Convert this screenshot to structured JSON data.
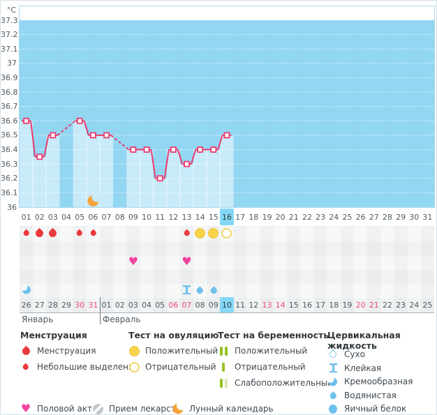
{
  "chart_data": {
    "type": "line",
    "title": "",
    "ylabel": "°C",
    "ylim": [
      36,
      37.3
    ],
    "y_ticks": [
      "37.3",
      "37.2",
      "37.1",
      "37",
      "36.9",
      "36.8",
      "36.7",
      "36.6",
      "36.5",
      "36.4",
      "36.3",
      "36.2",
      "36.1",
      "36"
    ],
    "grid": "white-dotted-horizontal",
    "legend_position": "bottom",
    "cycle_days": [
      "01",
      "02",
      "03",
      "04",
      "05",
      "06",
      "07",
      "08",
      "09",
      "10",
      "11",
      "12",
      "13",
      "14",
      "15",
      "16",
      "17",
      "18",
      "19",
      "20",
      "21",
      "22",
      "23",
      "24",
      "25",
      "26",
      "27",
      "28",
      "29",
      "30",
      "31"
    ],
    "temperatures": [
      36.6,
      36.35,
      36.5,
      null,
      36.6,
      36.5,
      36.5,
      null,
      36.4,
      36.4,
      36.2,
      36.4,
      36.3,
      36.4,
      36.4,
      36.5,
      null,
      null,
      null,
      null,
      null,
      null,
      null,
      null,
      null,
      null,
      null,
      null,
      null,
      null,
      null
    ],
    "current_cycle_day": 16,
    "moon_day": 6,
    "missing_data_style": "dashed-connector"
  },
  "symbol_rows": {
    "menstruation_ovulation": {
      "1": "drop-small",
      "2": "drop-large",
      "3": "drop-large",
      "5": "drop-small",
      "6": "drop-small",
      "13": "drop-small",
      "14": "ovulation-positive",
      "15": "ovulation-positive",
      "16": "ovulation-negative"
    },
    "pregnancy": {},
    "intercourse": {
      "9": "heart",
      "13": "heart"
    },
    "medication": {},
    "cervical_fluid": {
      "1": "fluid-creamy",
      "13": "fluid-sticky",
      "14": "fluid-watery",
      "15": "fluid-watery"
    }
  },
  "calendar": {
    "date_labels": [
      "26",
      "27",
      "28",
      "29",
      "30",
      "31",
      "01",
      "02",
      "03",
      "04",
      "05",
      "06",
      "07",
      "08",
      "09",
      "10",
      "11",
      "12",
      "13",
      "14",
      "15",
      "16",
      "17",
      "18",
      "19",
      "20",
      "21",
      "22",
      "23",
      "24",
      "25"
    ],
    "weekend_indices": [
      4,
      5,
      11,
      12,
      18,
      19,
      25,
      26
    ],
    "current_index": 15,
    "months": [
      {
        "label": "Январь"
      },
      {
        "label": "Февраль"
      }
    ],
    "month2_start_index": 6
  },
  "icon_glyphs": {
    "heart": "♥"
  },
  "colors": {
    "plot_bg": "#92D6F2",
    "bar": "#C8EAF9",
    "line": "#EC3A6E",
    "grid": "#FFFFFF",
    "highlight": "#84D8F5",
    "weekend": "#F0487F",
    "menses_red": "#E93A3E",
    "ovulation_yellow": "#F7D24B",
    "pregnancy_green": "#95C11F",
    "fluid_blue": "#6EC1EB",
    "heart_pink": "#F3459E",
    "moon_orange": "#F4A43B",
    "pill_gray": "#C3C8CD"
  },
  "legend": {
    "columns": [
      {
        "title": "Менструация",
        "items": [
          {
            "icon": "drop-large",
            "label": "Менструация"
          },
          {
            "icon": "drop-small",
            "label": "Небольшие выделения"
          }
        ]
      },
      {
        "title": "Тест на овуляцию",
        "items": [
          {
            "icon": "ovulation-positive",
            "label": "Положительный"
          },
          {
            "icon": "ovulation-negative",
            "label": "Отрицательный"
          }
        ]
      },
      {
        "title": "Тест на беременность",
        "items": [
          {
            "icon": "pregnancy-positive",
            "label": "Положительный"
          },
          {
            "icon": "pregnancy-negative",
            "label": "Отрицательный"
          },
          {
            "icon": "pregnancy-weak",
            "label": "Слабоположительный"
          }
        ]
      },
      {
        "title": "Цервикальная жидкость",
        "items": [
          {
            "icon": "fluid-dry",
            "label": "Сухо"
          },
          {
            "icon": "fluid-sticky",
            "label": "Клейкая"
          },
          {
            "icon": "fluid-creamy",
            "label": "Кремообразная"
          },
          {
            "icon": "fluid-watery",
            "label": "Водянистая"
          },
          {
            "icon": "fluid-eggwhite",
            "label": "Яичный белок"
          }
        ]
      }
    ],
    "bottom_items": [
      {
        "icon": "heart",
        "label": "Половой акт"
      },
      {
        "icon": "pill",
        "label": "Прием лекарств"
      },
      {
        "icon": "moon",
        "label": "Лунный календарь"
      }
    ]
  }
}
